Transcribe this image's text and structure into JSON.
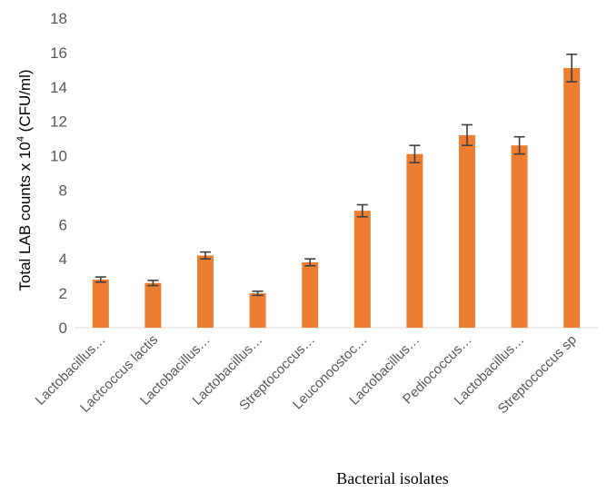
{
  "chart_data": {
    "type": "bar",
    "categories": [
      "Lactobacillus…",
      "Lactcoccus lactis",
      "Lactobacillus…",
      "Lactobacillus…",
      "Streptococcus…",
      "Leuconoostoc…",
      "Lactobacillus…",
      "Pediococcus…",
      "Lactobacillus…",
      "Streptococcus sp"
    ],
    "values": [
      2.8,
      2.6,
      4.2,
      2.0,
      3.8,
      6.8,
      10.1,
      11.2,
      10.6,
      15.1
    ],
    "errors": [
      0.15,
      0.15,
      0.2,
      0.12,
      0.2,
      0.35,
      0.5,
      0.6,
      0.5,
      0.8
    ],
    "ylabel_main": "Total LAB counts x 10",
    "ylabel_sup": "4",
    "ylabel_unit": " (CFU/ml)",
    "xlabel": "Bacterial isolates",
    "ylim": [
      0,
      18
    ],
    "yticks": [
      0,
      2,
      4,
      6,
      8,
      10,
      12,
      14,
      16,
      18
    ],
    "grid": false,
    "bar_color": "#ED7D31",
    "error_bar_color": "#404040"
  }
}
